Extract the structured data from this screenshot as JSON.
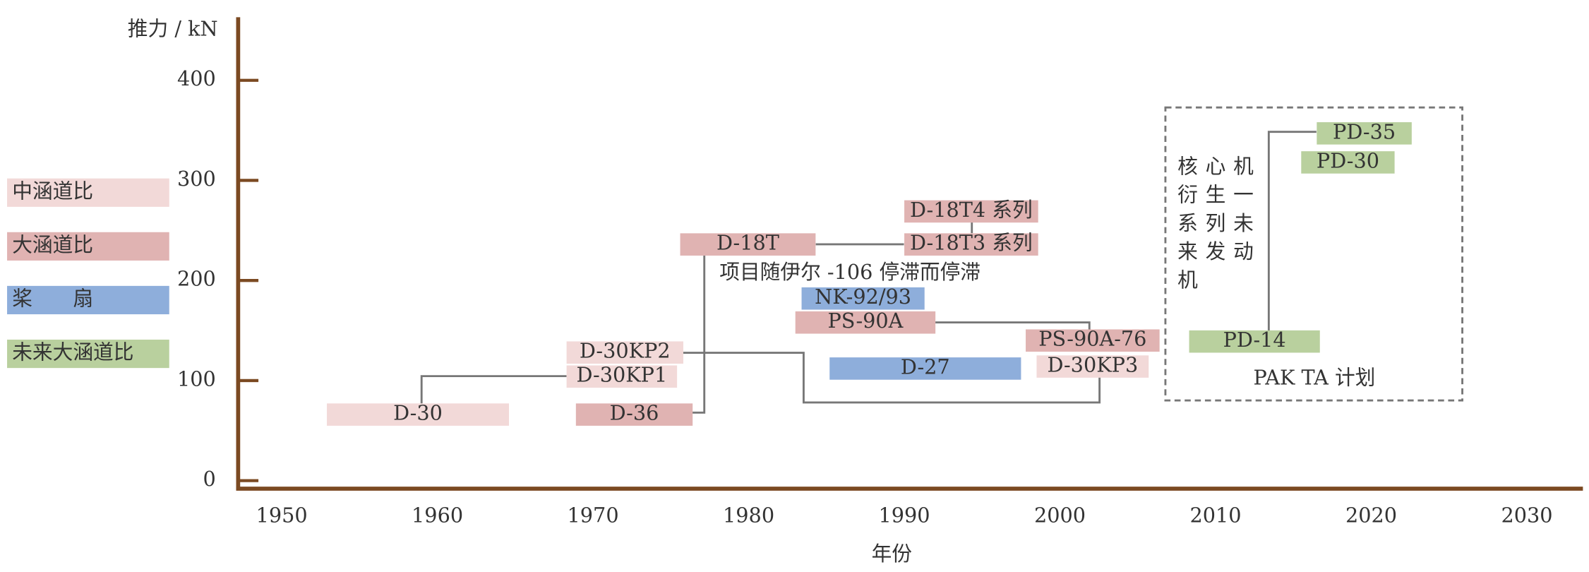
{
  "chart_data": {
    "type": "timeline",
    "y_label": "推力 / kN",
    "x_label": "年份",
    "xlim": [
      1947.2,
      2033.6
    ],
    "xticks": [
      1950,
      1960,
      1970,
      1980,
      1990,
      2000,
      2010,
      2020,
      2030
    ],
    "ylim": [
      -8,
      462
    ],
    "yticks": [
      0,
      100,
      200,
      300,
      400
    ],
    "series": [
      {
        "name": "中涵道比",
        "color": "#f2d9d8",
        "labels": [
          "D-30",
          "D-30KP1",
          "D-30KP2",
          "D-30KP3"
        ],
        "starts": [
          1952.9,
          1968.3,
          1968.3,
          1998.5
        ],
        "ends": [
          1964.6,
          1975.4,
          1975.8,
          2005.7
        ],
        "values": [
          66,
          104,
          128,
          114
        ]
      },
      {
        "name": "大涵道比",
        "color": "#e0b3b2",
        "labels": [
          "D-36",
          "D-18T",
          "D-18T3 系列",
          "D-18T4 系列",
          "PS-90A",
          "PS-90A-76"
        ],
        "starts": [
          1968.9,
          1975.6,
          1990.0,
          1990.0,
          1983.0,
          1997.8
        ],
        "ends": [
          1976.4,
          1984.3,
          1998.6,
          1998.6,
          1992.0,
          2006.4
        ],
        "values": [
          66,
          236,
          236,
          269,
          158,
          140
        ]
      },
      {
        "name": "桨　　扇",
        "color": "#8eaedb",
        "labels": [
          "NK-92/93",
          "D-27"
        ],
        "starts": [
          1983.4,
          1985.2
        ],
        "ends": [
          1991.3,
          1997.5
        ],
        "values": [
          182,
          112
        ]
      },
      {
        "name": "未来大涵道比",
        "color": "#b9d09e",
        "labels": [
          "PD-14",
          "PD-35",
          "PD-30"
        ],
        "starts": [
          2008.3,
          2016.5,
          2015.5
        ],
        "ends": [
          2016.7,
          2022.6,
          2021.5
        ],
        "values": [
          139,
          347,
          318
        ]
      }
    ],
    "annotations": [
      "项目随伊尔 -106 停滞而停滞",
      "核心机衍生一系列未来发动机",
      "PAK TA 计划"
    ]
  }
}
